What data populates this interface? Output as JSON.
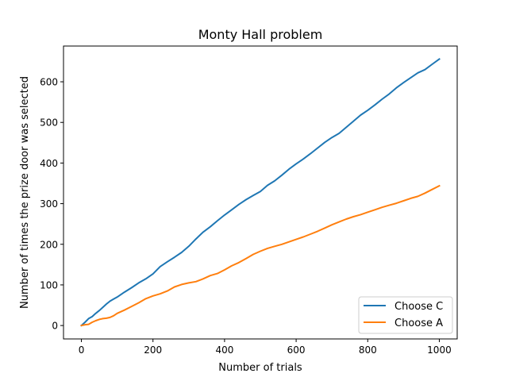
{
  "chart_data": {
    "type": "line",
    "title": "Monty Hall problem",
    "xlabel": "Number of trials",
    "ylabel": "Number of times the prize door was selected",
    "xlim": [
      -50,
      1050
    ],
    "ylim": [
      -33,
      688
    ],
    "xticks": [
      0,
      200,
      400,
      600,
      800,
      1000
    ],
    "yticks": [
      0,
      100,
      200,
      300,
      400,
      500,
      600
    ],
    "grid": false,
    "legend_position": "lower right",
    "series": [
      {
        "name": "Choose C",
        "color": "#1f77b4",
        "x": [
          0,
          10,
          20,
          30,
          40,
          50,
          60,
          70,
          80,
          90,
          100,
          120,
          140,
          160,
          180,
          200,
          220,
          240,
          260,
          280,
          300,
          320,
          340,
          360,
          380,
          400,
          420,
          440,
          460,
          480,
          500,
          520,
          540,
          560,
          580,
          600,
          620,
          640,
          660,
          680,
          700,
          720,
          740,
          760,
          780,
          800,
          820,
          840,
          860,
          880,
          900,
          920,
          940,
          960,
          980,
          1000
        ],
        "y": [
          0,
          8,
          17,
          22,
          30,
          37,
          45,
          53,
          60,
          65,
          70,
          82,
          93,
          105,
          115,
          127,
          145,
          157,
          168,
          180,
          195,
          213,
          230,
          243,
          258,
          272,
          285,
          298,
          310,
          320,
          330,
          345,
          356,
          370,
          385,
          398,
          410,
          423,
          437,
          451,
          463,
          473,
          488,
          503,
          518,
          530,
          543,
          557,
          570,
          585,
          598,
          610,
          622,
          630,
          643,
          656
        ]
      },
      {
        "name": "Choose A",
        "color": "#ff7f0e",
        "x": [
          0,
          10,
          20,
          30,
          40,
          50,
          60,
          70,
          80,
          90,
          100,
          120,
          140,
          160,
          180,
          200,
          220,
          240,
          260,
          280,
          300,
          320,
          340,
          360,
          380,
          400,
          420,
          440,
          460,
          480,
          500,
          520,
          540,
          560,
          580,
          600,
          620,
          640,
          660,
          680,
          700,
          720,
          740,
          760,
          780,
          800,
          820,
          840,
          860,
          880,
          900,
          920,
          940,
          960,
          980,
          1000
        ],
        "y": [
          0,
          2,
          3,
          8,
          12,
          15,
          17,
          18,
          20,
          24,
          30,
          38,
          47,
          56,
          66,
          73,
          78,
          85,
          95,
          101,
          105,
          108,
          115,
          123,
          128,
          137,
          147,
          155,
          165,
          175,
          183,
          190,
          195,
          200,
          206,
          212,
          218,
          225,
          232,
          240,
          248,
          255,
          262,
          268,
          273,
          279,
          285,
          291,
          296,
          301,
          307,
          313,
          318,
          326,
          335,
          344
        ]
      }
    ]
  }
}
